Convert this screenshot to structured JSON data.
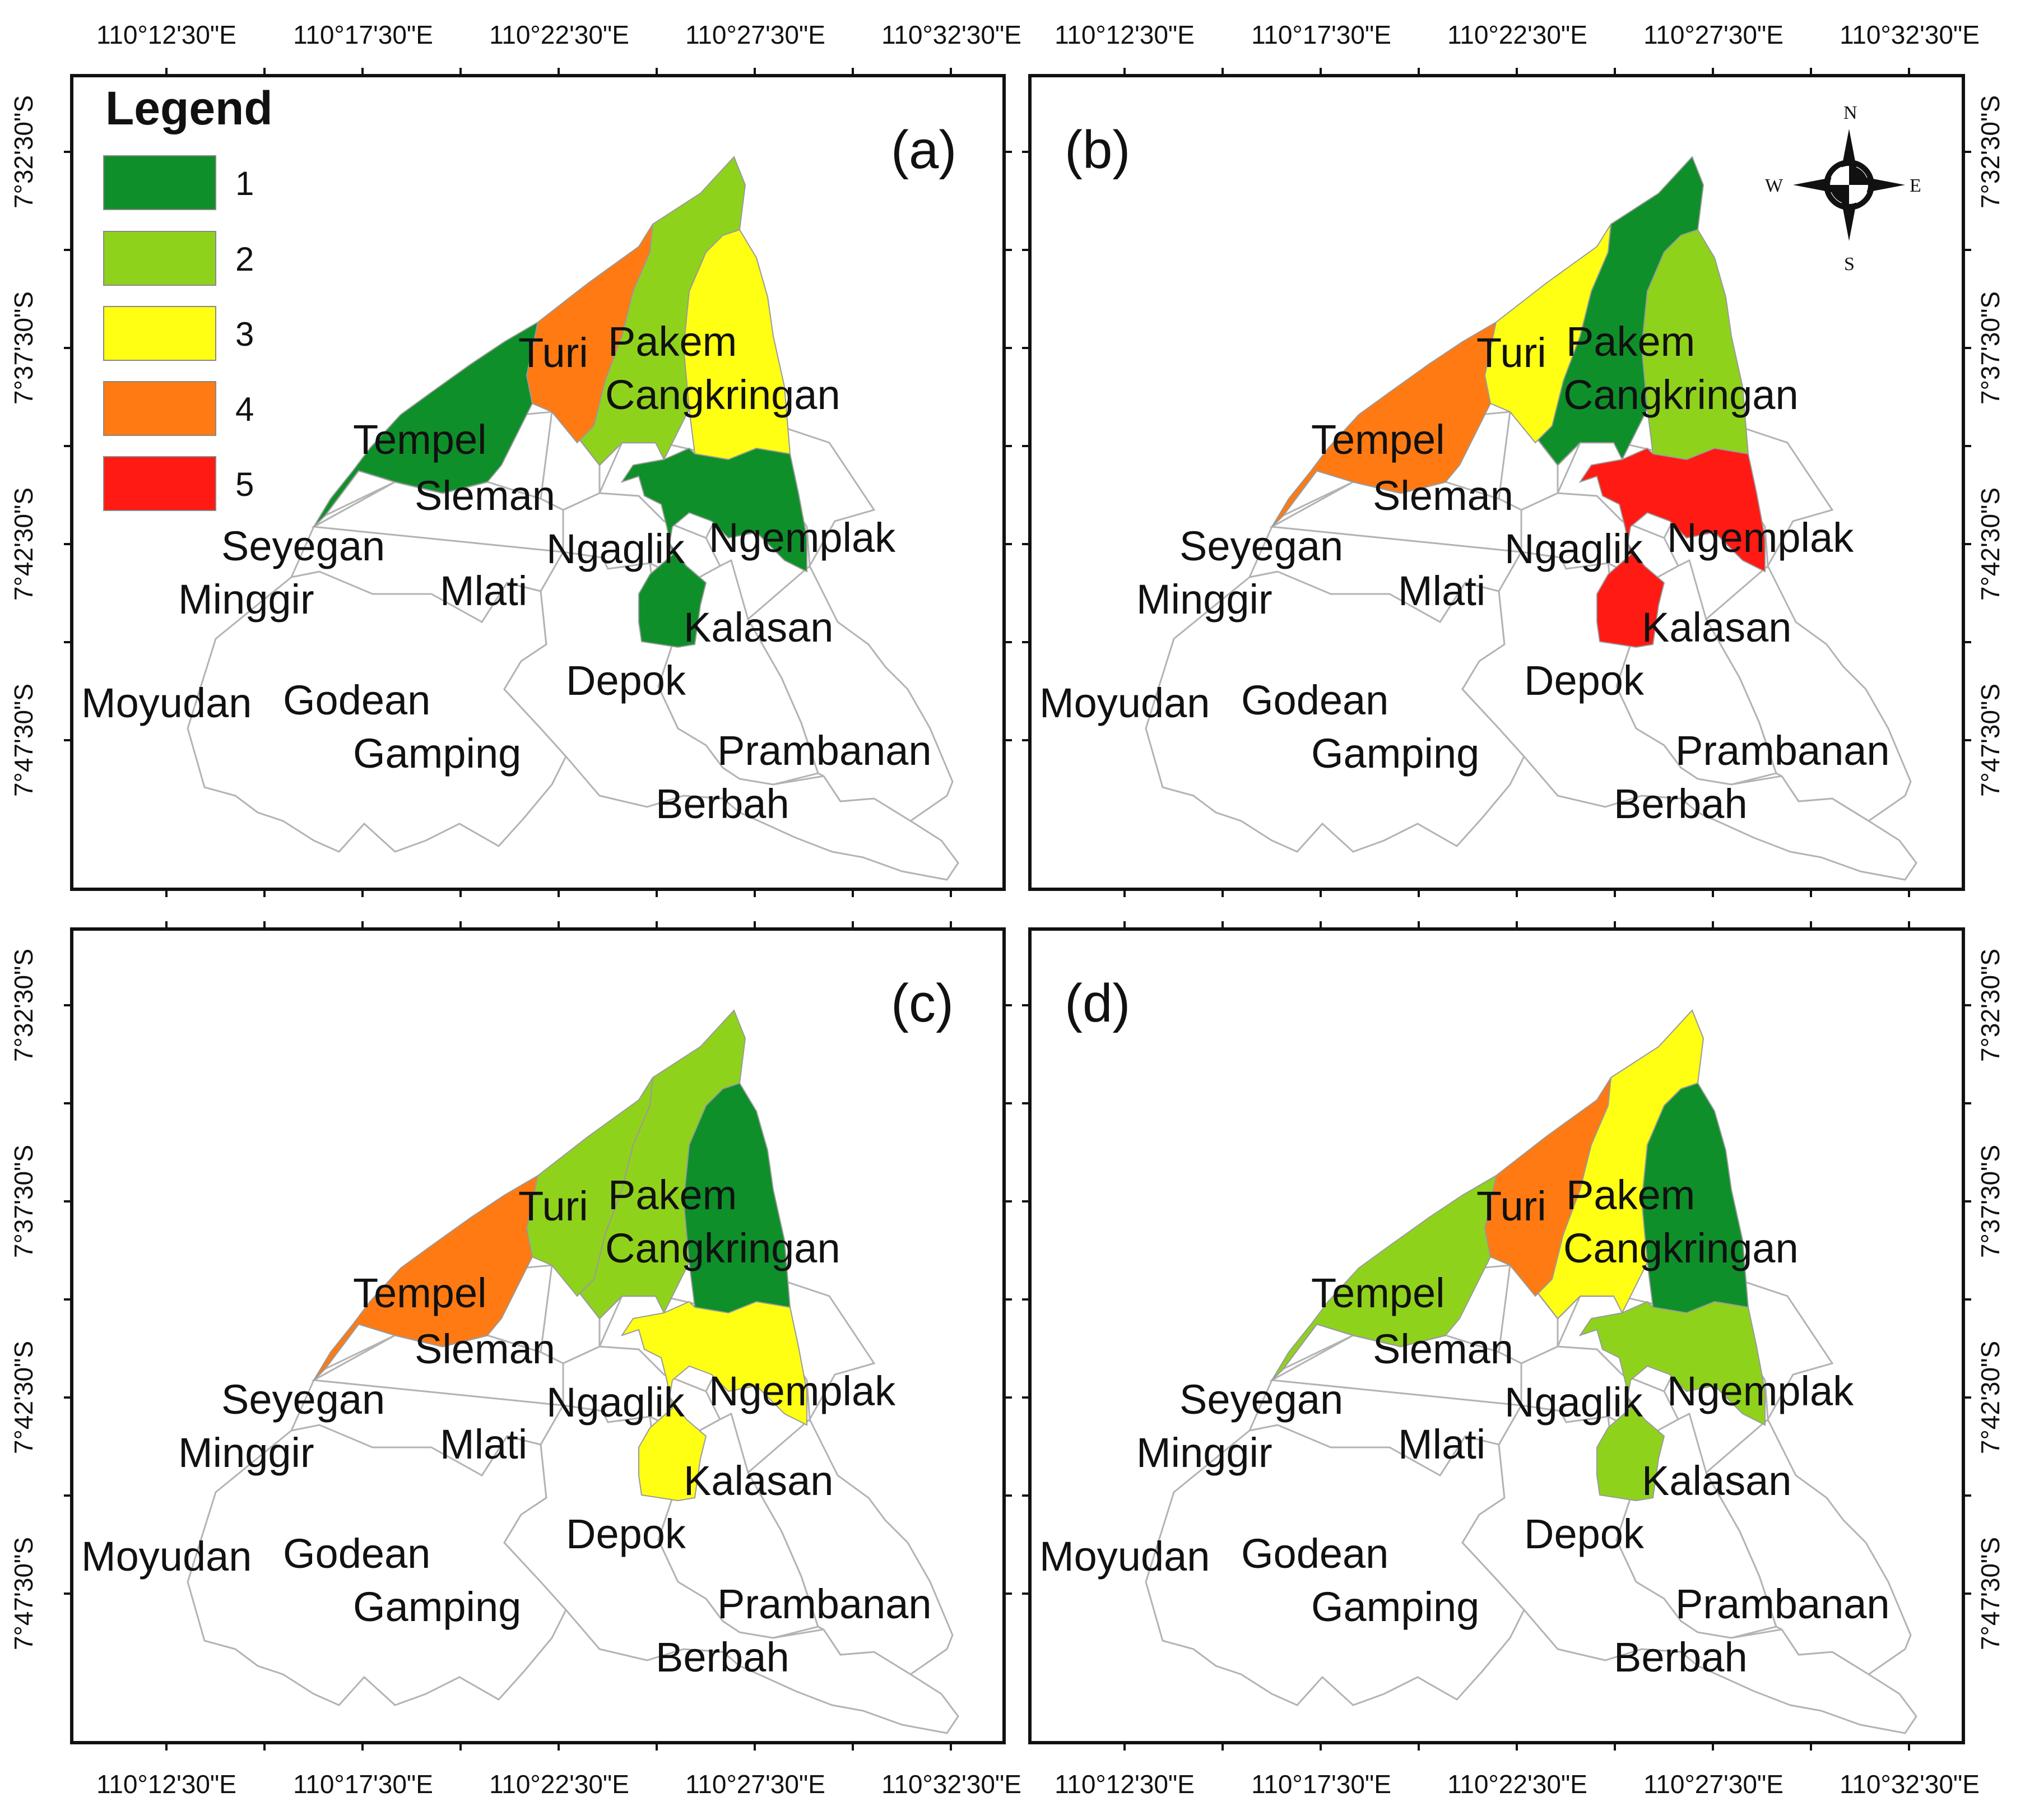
{
  "figure": {
    "lon_ticks": [
      "110°12'30\"E",
      "110°17'30\"E",
      "110°22'30\"E",
      "110°27'30\"E",
      "110°32'30\"E"
    ],
    "lat_ticks": [
      "7°32'30\"S",
      "7°37'30\"S",
      "7°42'30\"S",
      "7°47'30\"S"
    ]
  },
  "legend": {
    "title": "Legend",
    "classes": [
      {
        "label": "1",
        "color": "#0e8f2a"
      },
      {
        "label": "2",
        "color": "#8fd21c"
      },
      {
        "label": "3",
        "color": "#ffff14"
      },
      {
        "label": "4",
        "color": "#ff7a12"
      },
      {
        "label": "5",
        "color": "#ff1a14"
      }
    ]
  },
  "compass": {
    "north": "N",
    "south": "S",
    "east": "E",
    "west": "W"
  },
  "district_labels": [
    "Turi",
    "Pakem",
    "Cangkringan",
    "Tempel",
    "Sleman",
    "Seyegan",
    "Ngaglik",
    "Ngemplak",
    "Minggir",
    "Mlati",
    "Kalasan",
    "Depok",
    "Moyudan",
    "Godean",
    "Gamping",
    "Prambanan",
    "Berbah"
  ],
  "panels": [
    {
      "label": "(a)",
      "classes": {
        "Tempel": 1,
        "Turi": 4,
        "Pakem": 2,
        "Cangkringan": 3,
        "Ngemplak": 1
      }
    },
    {
      "label": "(b)",
      "classes": {
        "Tempel": 4,
        "Turi": 3,
        "Pakem": 1,
        "Cangkringan": 2,
        "Ngemplak": 5
      }
    },
    {
      "label": "(c)",
      "classes": {
        "Tempel": 4,
        "Turi": 2,
        "Pakem": 2,
        "Cangkringan": 1,
        "Ngemplak": 3
      }
    },
    {
      "label": "(d)",
      "classes": {
        "Tempel": 2,
        "Turi": 4,
        "Pakem": 3,
        "Cangkringan": 1,
        "Ngemplak": 2
      }
    }
  ]
}
